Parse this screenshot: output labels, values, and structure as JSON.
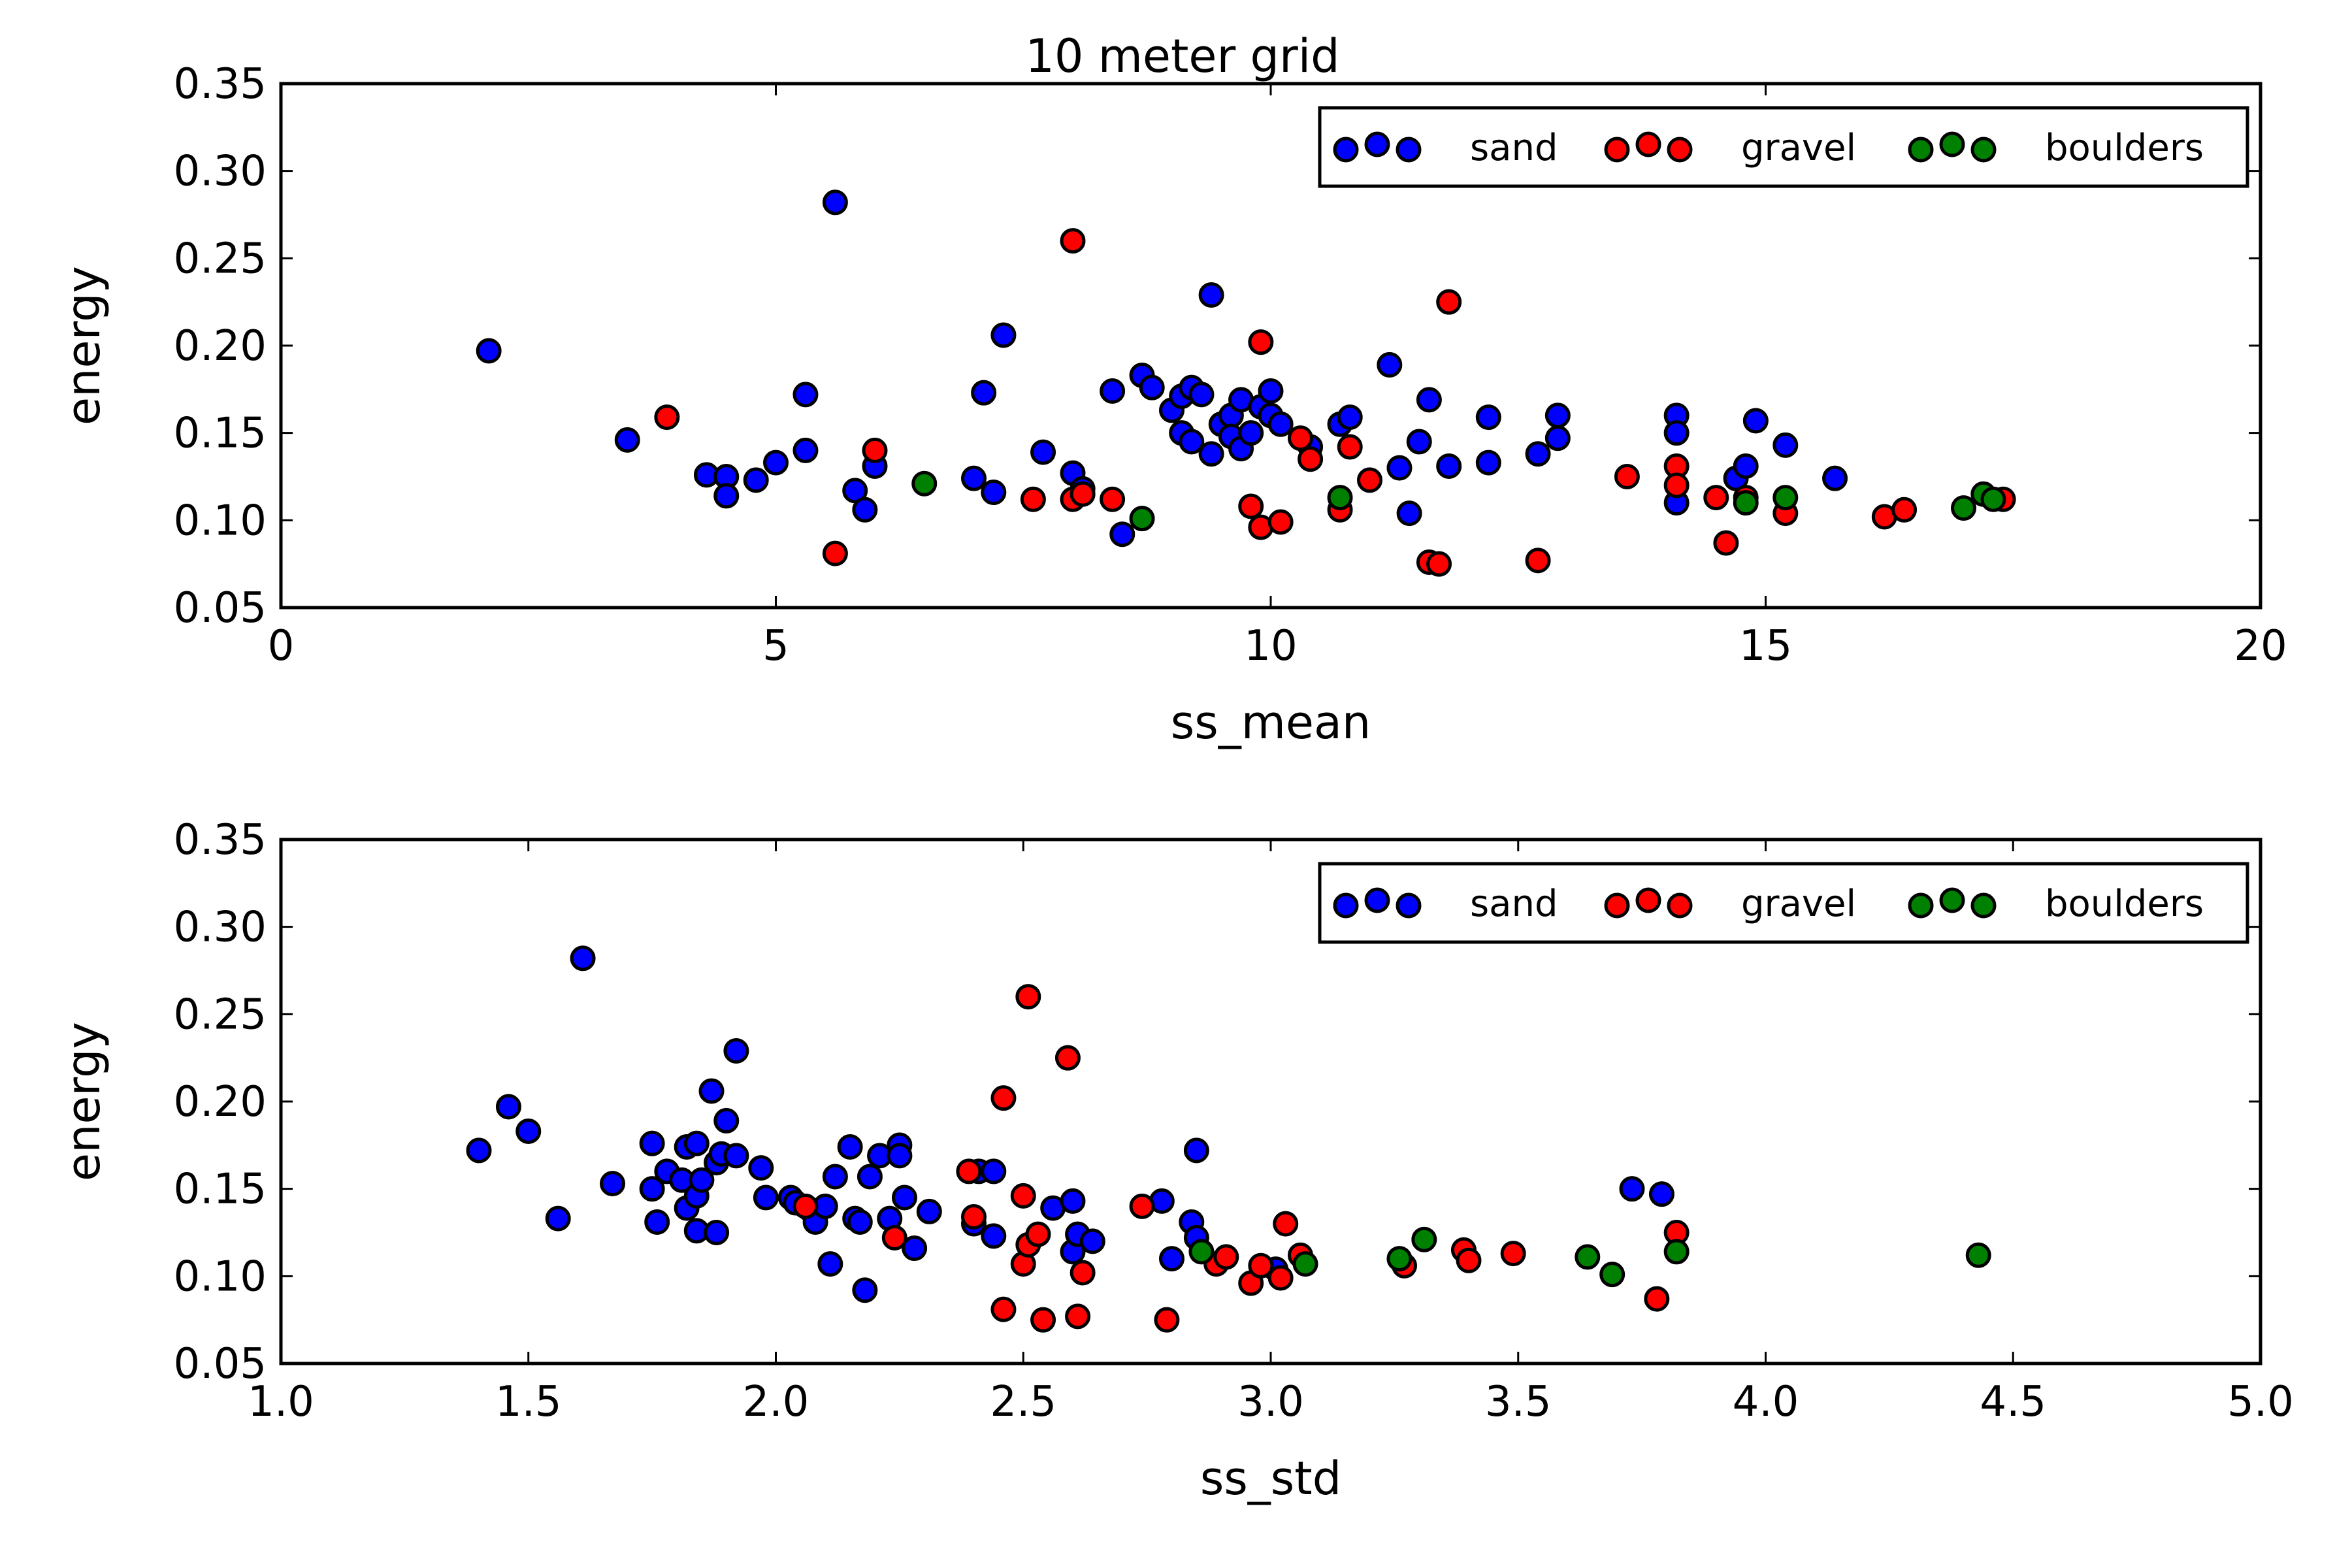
{
  "chart_data": [
    {
      "type": "scatter",
      "title": "10 meter grid",
      "xlabel": "ss_mean",
      "ylabel": "energy",
      "xlim": [
        0,
        20
      ],
      "ylim": [
        0.05,
        0.35
      ],
      "xticks": [
        0,
        5,
        10,
        15,
        20
      ],
      "xtick_labels": [
        "0",
        "5",
        "10",
        "15",
        "20"
      ],
      "yticks": [
        0.05,
        0.1,
        0.15,
        0.2,
        0.25,
        0.3,
        0.35
      ],
      "ytick_labels": [
        "0.05",
        "0.10",
        "0.15",
        "0.20",
        "0.25",
        "0.30",
        "0.35"
      ],
      "grid": false,
      "legend_position": "top-right",
      "series": [
        {
          "name": "sand",
          "color": "#0000ff",
          "points": [
            [
              2.1,
              0.197
            ],
            [
              3.5,
              0.146
            ],
            [
              4.3,
              0.126
            ],
            [
              4.5,
              0.125
            ],
            [
              4.5,
              0.114
            ],
            [
              4.8,
              0.123
            ],
            [
              5.0,
              0.133
            ],
            [
              5.3,
              0.172
            ],
            [
              5.3,
              0.14
            ],
            [
              5.6,
              0.282
            ],
            [
              5.8,
              0.117
            ],
            [
              5.9,
              0.106
            ],
            [
              6.0,
              0.131
            ],
            [
              7.1,
              0.173
            ],
            [
              7.0,
              0.124
            ],
            [
              7.2,
              0.116
            ],
            [
              7.3,
              0.206
            ],
            [
              7.7,
              0.139
            ],
            [
              8.0,
              0.127
            ],
            [
              8.1,
              0.118
            ],
            [
              8.4,
              0.174
            ],
            [
              8.5,
              0.092
            ],
            [
              8.7,
              0.183
            ],
            [
              8.8,
              0.176
            ],
            [
              9.0,
              0.163
            ],
            [
              9.1,
              0.171
            ],
            [
              9.2,
              0.176
            ],
            [
              9.1,
              0.15
            ],
            [
              9.2,
              0.145
            ],
            [
              9.3,
              0.172
            ],
            [
              9.4,
              0.229
            ],
            [
              9.4,
              0.138
            ],
            [
              9.5,
              0.155
            ],
            [
              9.6,
              0.16
            ],
            [
              9.6,
              0.148
            ],
            [
              9.7,
              0.169
            ],
            [
              9.7,
              0.141
            ],
            [
              9.8,
              0.15
            ],
            [
              9.9,
              0.165
            ],
            [
              10.0,
              0.174
            ],
            [
              10.0,
              0.16
            ],
            [
              10.1,
              0.155
            ],
            [
              10.4,
              0.142
            ],
            [
              10.7,
              0.155
            ],
            [
              10.8,
              0.159
            ],
            [
              11.2,
              0.189
            ],
            [
              11.3,
              0.13
            ],
            [
              11.4,
              0.104
            ],
            [
              11.5,
              0.145
            ],
            [
              11.6,
              0.169
            ],
            [
              11.8,
              0.131
            ],
            [
              12.2,
              0.159
            ],
            [
              12.2,
              0.133
            ],
            [
              12.7,
              0.138
            ],
            [
              12.9,
              0.16
            ],
            [
              12.9,
              0.147
            ],
            [
              14.1,
              0.16
            ],
            [
              14.1,
              0.15
            ],
            [
              14.1,
              0.11
            ],
            [
              14.7,
              0.124
            ],
            [
              14.8,
              0.131
            ],
            [
              14.9,
              0.157
            ],
            [
              15.2,
              0.143
            ],
            [
              15.7,
              0.124
            ]
          ]
        },
        {
          "name": "gravel",
          "color": "#ff0000",
          "points": [
            [
              3.9,
              0.159
            ],
            [
              5.6,
              0.081
            ],
            [
              6.0,
              0.14
            ],
            [
              7.6,
              0.112
            ],
            [
              8.0,
              0.26
            ],
            [
              8.0,
              0.112
            ],
            [
              8.1,
              0.115
            ],
            [
              8.4,
              0.112
            ],
            [
              9.9,
              0.202
            ],
            [
              9.8,
              0.108
            ],
            [
              9.9,
              0.096
            ],
            [
              10.1,
              0.099
            ],
            [
              10.3,
              0.147
            ],
            [
              10.4,
              0.135
            ],
            [
              10.7,
              0.106
            ],
            [
              10.8,
              0.142
            ],
            [
              11.0,
              0.123
            ],
            [
              11.6,
              0.076
            ],
            [
              11.7,
              0.075
            ],
            [
              11.8,
              0.225
            ],
            [
              12.7,
              0.077
            ],
            [
              13.6,
              0.125
            ],
            [
              14.1,
              0.131
            ],
            [
              14.1,
              0.12
            ],
            [
              14.5,
              0.113
            ],
            [
              14.6,
              0.087
            ],
            [
              14.8,
              0.113
            ],
            [
              15.2,
              0.104
            ],
            [
              16.2,
              0.102
            ],
            [
              16.4,
              0.106
            ],
            [
              17.4,
              0.112
            ]
          ]
        },
        {
          "name": "boulders",
          "color": "#008000",
          "points": [
            [
              6.5,
              0.121
            ],
            [
              8.7,
              0.101
            ],
            [
              10.7,
              0.113
            ],
            [
              14.8,
              0.11
            ],
            [
              15.2,
              0.113
            ],
            [
              17.0,
              0.107
            ],
            [
              17.2,
              0.115
            ],
            [
              17.3,
              0.112
            ]
          ]
        }
      ]
    },
    {
      "type": "scatter",
      "title": "",
      "xlabel": "ss_std",
      "ylabel": "energy",
      "xlim": [
        1.0,
        5.0
      ],
      "ylim": [
        0.05,
        0.35
      ],
      "xticks": [
        1.0,
        1.5,
        2.0,
        2.5,
        3.0,
        3.5,
        4.0,
        4.5,
        5.0
      ],
      "xtick_labels": [
        "1.0",
        "1.5",
        "2.0",
        "2.5",
        "3.0",
        "3.5",
        "4.0",
        "4.5",
        "5.0"
      ],
      "yticks": [
        0.05,
        0.1,
        0.15,
        0.2,
        0.25,
        0.3,
        0.35
      ],
      "ytick_labels": [
        "0.05",
        "0.10",
        "0.15",
        "0.20",
        "0.25",
        "0.30",
        "0.35"
      ],
      "grid": false,
      "legend_position": "top-right",
      "series": [
        {
          "name": "sand",
          "color": "#0000ff",
          "points": [
            [
              1.4,
              0.172
            ],
            [
              1.46,
              0.197
            ],
            [
              1.5,
              0.183
            ],
            [
              1.56,
              0.133
            ],
            [
              1.61,
              0.282
            ],
            [
              1.67,
              0.153
            ],
            [
              1.75,
              0.176
            ],
            [
              1.75,
              0.15
            ],
            [
              1.76,
              0.131
            ],
            [
              1.78,
              0.16
            ],
            [
              1.81,
              0.155
            ],
            [
              1.82,
              0.174
            ],
            [
              1.82,
              0.139
            ],
            [
              1.84,
              0.176
            ],
            [
              1.84,
              0.146
            ],
            [
              1.85,
              0.155
            ],
            [
              1.84,
              0.126
            ],
            [
              1.87,
              0.206
            ],
            [
              1.88,
              0.125
            ],
            [
              1.88,
              0.165
            ],
            [
              1.89,
              0.17
            ],
            [
              1.9,
              0.189
            ],
            [
              1.92,
              0.229
            ],
            [
              1.92,
              0.169
            ],
            [
              1.97,
              0.162
            ],
            [
              1.98,
              0.145
            ],
            [
              2.03,
              0.145
            ],
            [
              2.04,
              0.142
            ],
            [
              2.07,
              0.138
            ],
            [
              2.08,
              0.131
            ],
            [
              2.1,
              0.14
            ],
            [
              2.11,
              0.107
            ],
            [
              2.12,
              0.157
            ],
            [
              2.15,
              0.174
            ],
            [
              2.16,
              0.133
            ],
            [
              2.17,
              0.131
            ],
            [
              2.18,
              0.092
            ],
            [
              2.19,
              0.157
            ],
            [
              2.21,
              0.169
            ],
            [
              2.23,
              0.133
            ],
            [
              2.25,
              0.175
            ],
            [
              2.25,
              0.169
            ],
            [
              2.26,
              0.145
            ],
            [
              2.28,
              0.116
            ],
            [
              2.31,
              0.137
            ],
            [
              2.4,
              0.13
            ],
            [
              2.41,
              0.16
            ],
            [
              2.44,
              0.16
            ],
            [
              2.44,
              0.123
            ],
            [
              2.56,
              0.139
            ],
            [
              2.6,
              0.143
            ],
            [
              2.6,
              0.114
            ],
            [
              2.61,
              0.124
            ],
            [
              2.64,
              0.12
            ],
            [
              2.78,
              0.143
            ],
            [
              2.8,
              0.11
            ],
            [
              2.84,
              0.131
            ],
            [
              2.85,
              0.172
            ],
            [
              2.85,
              0.122
            ],
            [
              3.01,
              0.104
            ],
            [
              3.73,
              0.15
            ],
            [
              3.79,
              0.147
            ]
          ]
        },
        {
          "name": "gravel",
          "color": "#ff0000",
          "points": [
            [
              2.06,
              0.14
            ],
            [
              2.24,
              0.122
            ],
            [
              2.39,
              0.16
            ],
            [
              2.4,
              0.134
            ],
            [
              2.46,
              0.202
            ],
            [
              2.46,
              0.081
            ],
            [
              2.5,
              0.107
            ],
            [
              2.5,
              0.146
            ],
            [
              2.51,
              0.26
            ],
            [
              2.51,
              0.118
            ],
            [
              2.53,
              0.124
            ],
            [
              2.54,
              0.075
            ],
            [
              2.59,
              0.225
            ],
            [
              2.61,
              0.077
            ],
            [
              2.62,
              0.102
            ],
            [
              2.74,
              0.14
            ],
            [
              2.79,
              0.075
            ],
            [
              2.89,
              0.107
            ],
            [
              2.91,
              0.111
            ],
            [
              2.96,
              0.096
            ],
            [
              2.98,
              0.106
            ],
            [
              3.02,
              0.099
            ],
            [
              3.03,
              0.13
            ],
            [
              3.06,
              0.112
            ],
            [
              3.27,
              0.106
            ],
            [
              3.39,
              0.115
            ],
            [
              3.4,
              0.109
            ],
            [
              3.49,
              0.113
            ],
            [
              3.78,
              0.087
            ],
            [
              3.82,
              0.125
            ]
          ]
        },
        {
          "name": "boulders",
          "color": "#008000",
          "points": [
            [
              2.86,
              0.114
            ],
            [
              3.07,
              0.107
            ],
            [
              3.26,
              0.11
            ],
            [
              3.31,
              0.121
            ],
            [
              3.64,
              0.111
            ],
            [
              3.69,
              0.101
            ],
            [
              3.82,
              0.114
            ],
            [
              4.43,
              0.112
            ]
          ]
        }
      ]
    }
  ]
}
